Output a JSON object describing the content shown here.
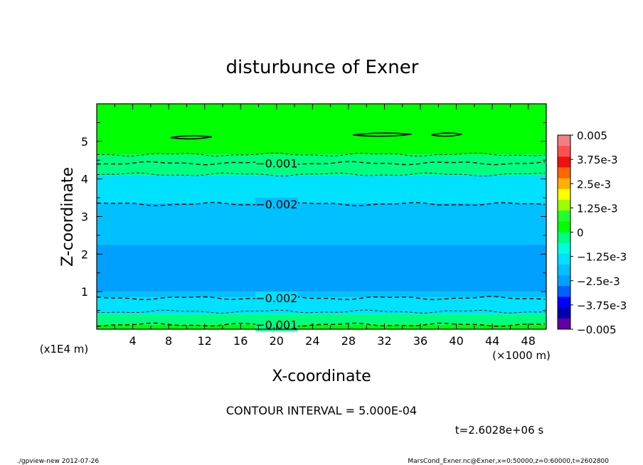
{
  "chart_data": {
    "type": "heatmap",
    "title": "disturbunce of Exner",
    "xlabel": "X-coordinate",
    "ylabel": "Z-coordinate",
    "x_unit_note": "(×1000 m)",
    "y_unit_note": "(x1E4 m)",
    "xlim": [
      0,
      50
    ],
    "ylim": [
      0,
      6
    ],
    "x_ticks": [
      4,
      8,
      12,
      16,
      20,
      24,
      28,
      32,
      36,
      40,
      44,
      48
    ],
    "y_ticks": [
      1,
      2,
      3,
      4,
      5
    ],
    "colorbar": {
      "range": [
        -0.005,
        0.005
      ],
      "labels": [
        "0.005",
        "3.75e-3",
        "2.5e-3",
        "1.25e-3",
        "0",
        "−1.25e-3",
        "−2.5e-3",
        "−3.75e-3",
        "−0.005"
      ],
      "colors": [
        "#f07f80",
        "#ff5050",
        "#f01010",
        "#ff6600",
        "#ffb000",
        "#ffff00",
        "#9cff00",
        "#20ff30",
        "#00ff00",
        "#00ff80",
        "#00ffe0",
        "#00e0ff",
        "#00c0ff",
        "#00a0ff",
        "#0060ff",
        "#0000ff",
        "#0000b0",
        "#6000a0"
      ]
    },
    "bands": [
      {
        "z_from": 4.65,
        "z_to": 6.0,
        "color": "#00ff00"
      },
      {
        "z_from": 4.1,
        "z_to": 4.65,
        "color": "#00ff80"
      },
      {
        "z_from": 3.35,
        "z_to": 4.1,
        "color": "#00e0ff"
      },
      {
        "z_from": 2.25,
        "z_to": 3.35,
        "color": "#00c0ff"
      },
      {
        "z_from": 1.0,
        "z_to": 2.25,
        "color": "#00a0ff"
      },
      {
        "z_from": 0.85,
        "z_to": 1.0,
        "color": "#00c0ff"
      },
      {
        "z_from": 0.4,
        "z_to": 0.85,
        "color": "#00e0ff"
      },
      {
        "z_from": 0.12,
        "z_to": 0.4,
        "color": "#00ff80"
      },
      {
        "z_from": 0.0,
        "z_to": 0.12,
        "color": "#00ff00"
      }
    ],
    "contour_lines": [
      {
        "z": 4.65,
        "label": "",
        "weight": "thin"
      },
      {
        "z": 4.42,
        "label": "−0.001",
        "label_x": 20,
        "weight": "bold"
      },
      {
        "z": 4.12,
        "label": "",
        "weight": "thin"
      },
      {
        "z": 3.33,
        "label": "−0.002",
        "label_x": 20,
        "weight": "bold"
      },
      {
        "z": 0.83,
        "label": "−0.002",
        "label_x": 20,
        "weight": "bold"
      },
      {
        "z": 0.47,
        "label": "",
        "weight": "thin"
      },
      {
        "z": 0.12,
        "label": "−0.001",
        "label_x": 20,
        "weight": "bold"
      }
    ],
    "closed_contours": [
      {
        "x_from": 8.2,
        "x_to": 12.8,
        "z": 5.1
      },
      {
        "x_from": 28.5,
        "x_to": 35.0,
        "z": 5.17
      },
      {
        "x_from": 37.2,
        "x_to": 40.6,
        "z": 5.17
      }
    ],
    "contour_interval_text": "CONTOUR INTERVAL = 5.000E-04",
    "time_text": "t=2.6028e+06 s"
  },
  "footer": {
    "left": "./gpview-new  2012-07-26",
    "right": "MarsCond_Exner.nc@Exner,x=0:50000,z=0:60000,t=2602800"
  }
}
